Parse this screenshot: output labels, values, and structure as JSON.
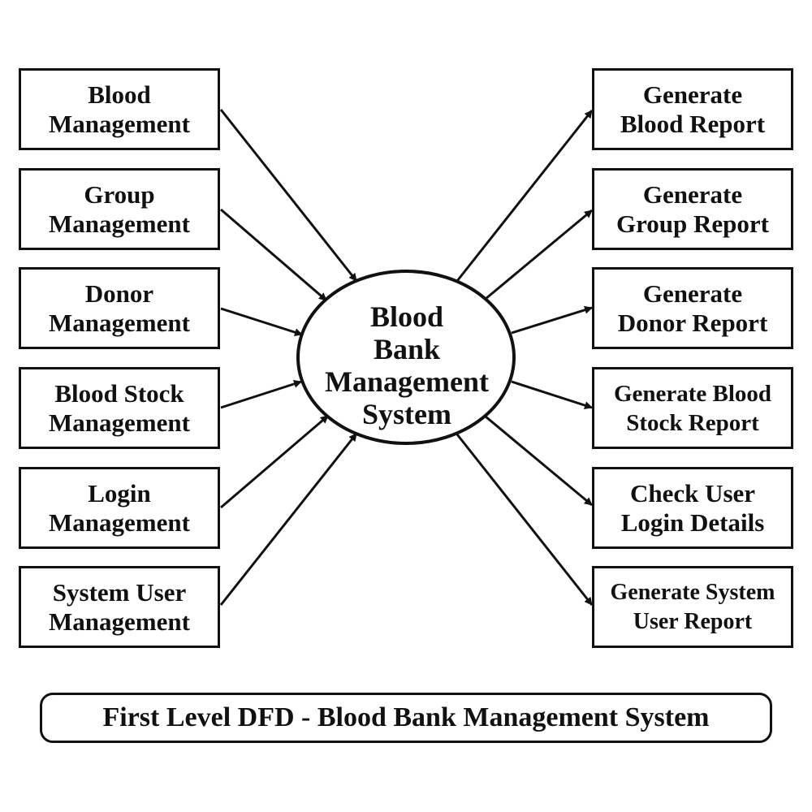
{
  "diagram": {
    "center_process": {
      "label": "Blood\nBank\nManagement\nSystem"
    },
    "inputs": [
      {
        "label": "Blood\nManagement"
      },
      {
        "label": "Group\nManagement"
      },
      {
        "label": "Donor\nManagement"
      },
      {
        "label": "Blood Stock\nManagement"
      },
      {
        "label": "Login\nManagement"
      },
      {
        "label": "System User\nManagement"
      }
    ],
    "outputs": [
      {
        "label": "Generate\nBlood Report"
      },
      {
        "label": "Generate\nGroup Report"
      },
      {
        "label": "Generate\nDonor Report"
      },
      {
        "label": "Generate Blood\nStock Report"
      },
      {
        "label": "Check User\nLogin Details"
      },
      {
        "label": "Generate System\nUser Report"
      }
    ],
    "caption": "First Level DFD - Blood Bank Management System",
    "colors": {
      "stroke": "#111111",
      "background": "#ffffff"
    }
  }
}
